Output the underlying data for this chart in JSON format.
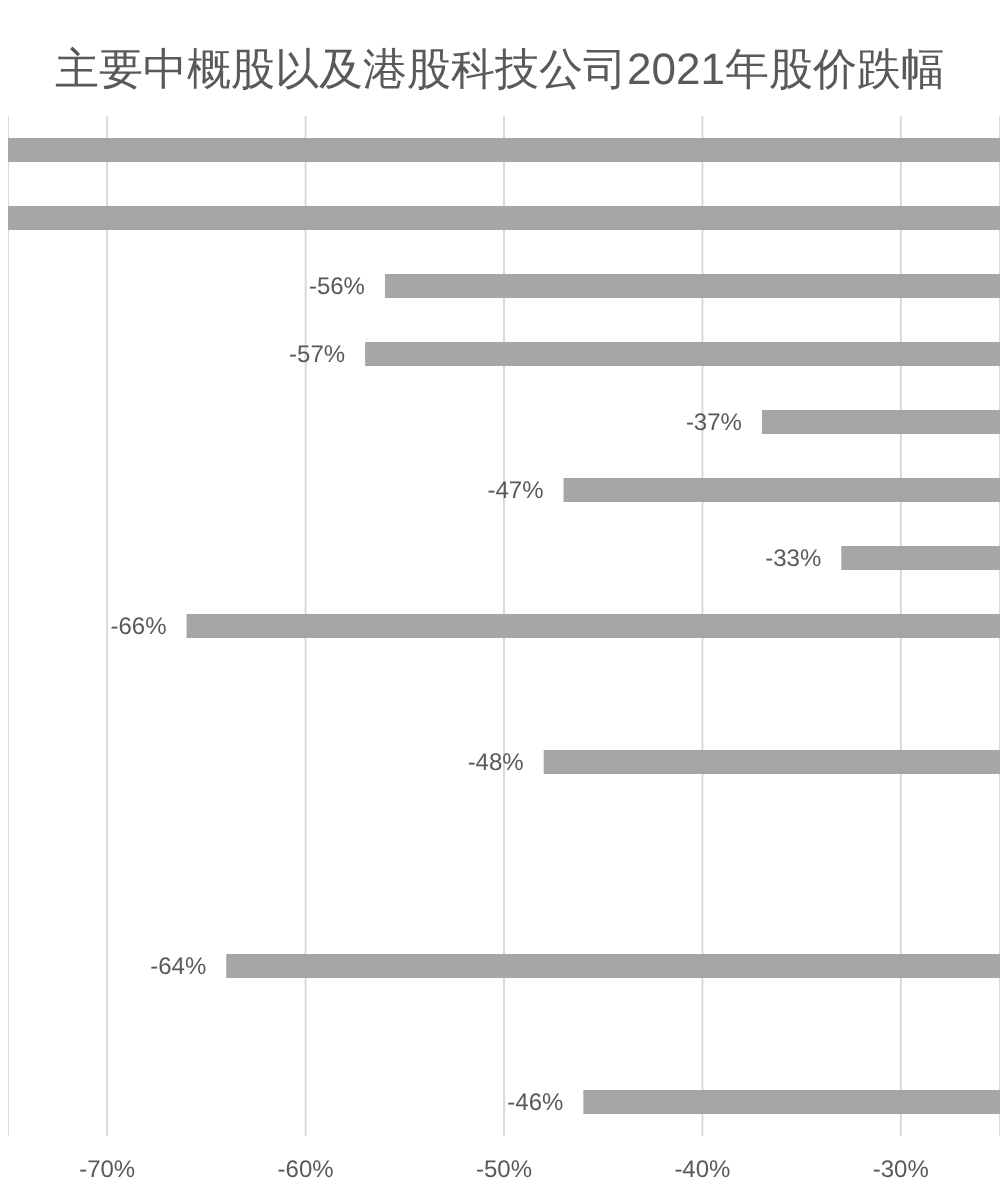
{
  "chart_data": {
    "type": "bar",
    "orientation": "horizontal",
    "title": "主要中概股以及港股科技公司2021年股价跌幅",
    "categories": [
      null,
      null,
      null,
      null,
      null,
      null,
      null,
      null,
      null,
      null,
      null,
      null,
      null,
      null,
      null
    ],
    "values": [
      -75,
      -75,
      -56,
      -57,
      -37,
      -47,
      -33,
      -66,
      null,
      -48,
      null,
      null,
      -64,
      null,
      -46
    ],
    "value_labels": [
      null,
      null,
      "-56%",
      "-57%",
      "-37%",
      "-47%",
      "-33%",
      "-66%",
      null,
      "-48%",
      null,
      null,
      "-64%",
      null,
      "-46%"
    ],
    "color": "#a6a6a6",
    "xlim": [
      -75,
      -25
    ],
    "xticks": [
      {
        "value": -70,
        "label": "-70%"
      },
      {
        "value": -60,
        "label": "-60%"
      },
      {
        "value": -50,
        "label": "-50%"
      },
      {
        "value": -40,
        "label": "-40%"
      },
      {
        "value": -30,
        "label": "-30%"
      }
    ],
    "grid": "x",
    "tick_labels": "x"
  }
}
